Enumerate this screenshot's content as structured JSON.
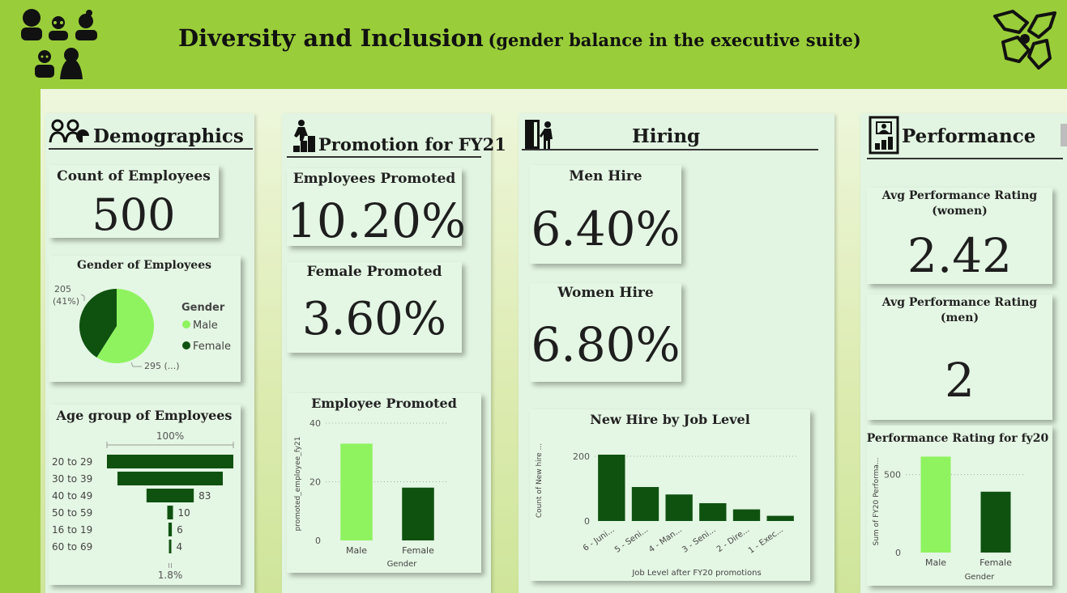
{
  "header": {
    "title": "Diversity and Inclusion",
    "subtitle": "(gender balance in the executive suite)"
  },
  "colors": {
    "header_bg": "#9acd3a",
    "male": "#8ef35f",
    "female": "#0f5210",
    "panel": "#e2f5e2"
  },
  "sections": {
    "demographics": "Demographics",
    "promotion": "Promotion for FY21",
    "hiring": "Hiring",
    "performance": "Performance"
  },
  "cards": {
    "count_employees": {
      "title": "Count of Employees",
      "value": "500"
    },
    "employees_promoted": {
      "title": "Employees Promoted",
      "value": "10.20%"
    },
    "female_promoted": {
      "title": "Female Promoted",
      "value": "3.60%"
    },
    "men_hire": {
      "title": "Men Hire",
      "value": "6.40%"
    },
    "women_hire": {
      "title": "Women Hire",
      "value": "6.80%"
    },
    "avg_perf_women": {
      "title_line1": "Avg Performance Rating",
      "title_line2": "(women)",
      "value": "2.42"
    },
    "avg_perf_men": {
      "title_line1": "Avg Performance Rating",
      "title_line2": "(men)",
      "value": "2"
    }
  },
  "chart_data": [
    {
      "type": "pie",
      "title": "Gender of Employees",
      "legend_title": "Gender",
      "legend_position": "right",
      "categories": [
        "Male",
        "Female"
      ],
      "values": [
        295,
        205
      ],
      "labels": [
        "295 (...)",
        "205 (41%)"
      ],
      "label_female_line1": "205",
      "label_female_line2": "(41%)"
    },
    {
      "type": "bar",
      "title": "Age group of Employees",
      "orientation": "funnel",
      "categories": [
        "20 to 29",
        "30 to 39",
        "40 to 49",
        "50 to 59",
        "16 to 19",
        "60 to 69"
      ],
      "values": [
        222,
        185,
        83,
        10,
        6,
        4
      ],
      "value_labels": [
        "",
        "",
        "83",
        "10",
        "6",
        "4"
      ],
      "top_label": "100%",
      "bottom_label": "1.8%"
    },
    {
      "type": "bar",
      "title": "Employee Promoted",
      "categories": [
        "Male",
        "Female"
      ],
      "values": [
        33,
        18
      ],
      "xlabel": "Gender",
      "ylabel": "promoted_employee_fy21",
      "ylim": [
        0,
        40
      ],
      "yticks": [
        "0",
        "20",
        "40"
      ],
      "grid": true
    },
    {
      "type": "bar",
      "title": "New Hire by Job Level",
      "categories": [
        "6 - Juni...",
        "5 - Seni...",
        "4 - Man...",
        "3 - Seni...",
        "2 - Dire...",
        "1 - Exec..."
      ],
      "values": [
        205,
        105,
        82,
        55,
        36,
        16
      ],
      "xlabel": "Job Level after FY20 promotions",
      "ylabel": "Count of New hire ...",
      "ylim": [
        0,
        240
      ],
      "yticks": [
        "0",
        "200"
      ],
      "grid": true
    },
    {
      "type": "bar",
      "title": "Performance Rating for fy20",
      "categories": [
        "Male",
        "Female"
      ],
      "values": [
        615,
        390
      ],
      "xlabel": "Gender",
      "ylabel": "Sum of FY20 Performa...",
      "ylim": [
        0,
        700
      ],
      "yticks": [
        "0",
        "500"
      ],
      "grid": true
    }
  ]
}
